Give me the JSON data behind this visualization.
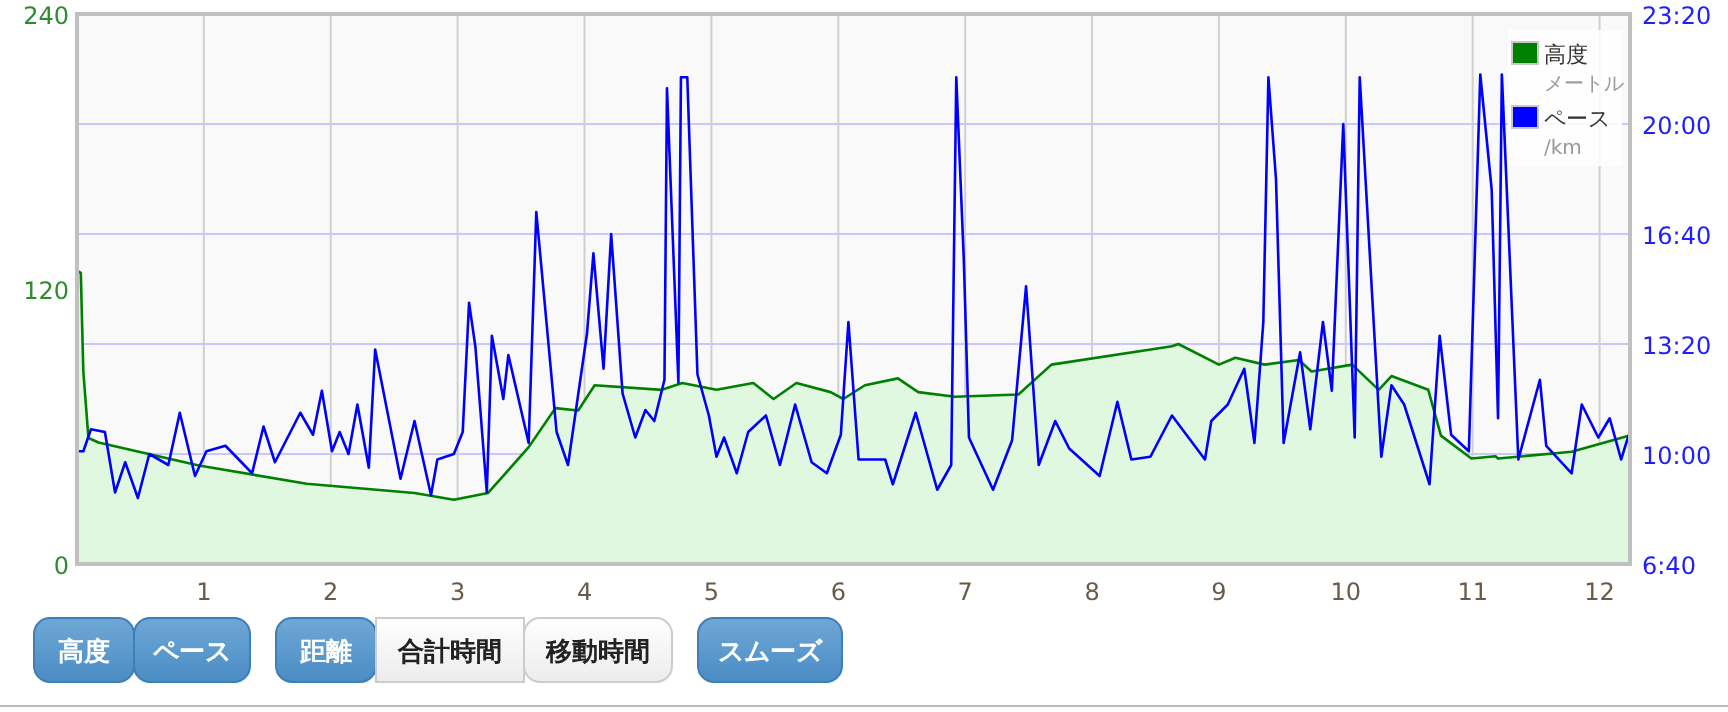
{
  "chart_data": {
    "type": "line",
    "xlim": [
      0,
      12.24
    ],
    "xticks": [
      1,
      2,
      3,
      4,
      5,
      6,
      7,
      8,
      9,
      10,
      11,
      12
    ],
    "ylim": [
      0,
      240
    ],
    "yticks": [
      0,
      120,
      240
    ],
    "y2lim": [
      400,
      1400
    ],
    "y2ticks": [
      {
        "value": 400,
        "label": "6:40"
      },
      {
        "value": 600,
        "label": "10:00"
      },
      {
        "value": 800,
        "label": "13:20"
      },
      {
        "value": 1000,
        "label": "16:40"
      },
      {
        "value": 1200,
        "label": "20:00"
      },
      {
        "value": 1400,
        "label": "23:20"
      }
    ],
    "grid": true,
    "legend": "top right",
    "series": [
      {
        "name": "高度",
        "type": "area",
        "color": "#008000",
        "x": [
          0,
          0.03,
          0.05,
          0.09,
          0.17,
          0.96,
          1.81,
          2.66,
          2.97,
          3.24,
          3.4,
          3.56,
          3.77,
          3.95,
          4.08,
          4.61,
          4.77,
          5.04,
          5.33,
          5.49,
          5.67,
          5.94,
          6.04,
          6.21,
          6.47,
          6.63,
          6.92,
          7.42,
          7.68,
          8.63,
          8.68,
          9.0,
          9.13,
          9.36,
          9.63,
          9.73,
          10.05,
          10.26,
          10.36,
          10.65,
          10.75,
          10.99,
          11.18,
          11.2,
          11.78,
          12.23
        ],
        "values": [
          128,
          127,
          84,
          55,
          53,
          43,
          35,
          31,
          28,
          31,
          41,
          51,
          68,
          67,
          78,
          76,
          79,
          76,
          79,
          72,
          79,
          75,
          72,
          78,
          81,
          75,
          73,
          74,
          87,
          95,
          96,
          87,
          90,
          87,
          89,
          84,
          87,
          76,
          82,
          76,
          56,
          46,
          47,
          46,
          49,
          56
        ]
      },
      {
        "name": "ペース",
        "axis": "y2",
        "color": "#0000ff",
        "x": [
          0,
          0.05,
          0.11,
          0.22,
          0.3,
          0.38,
          0.48,
          0.57,
          0.72,
          0.81,
          0.93,
          1.02,
          1.17,
          1.38,
          1.47,
          1.56,
          1.76,
          1.86,
          1.93,
          2.01,
          2.07,
          2.14,
          2.21,
          2.3,
          2.35,
          2.55,
          2.66,
          2.79,
          2.84,
          2.97,
          3.04,
          3.09,
          3.14,
          3.23,
          3.27,
          3.36,
          3.4,
          3.56,
          3.62,
          3.78,
          3.87,
          4.02,
          4.07,
          4.15,
          4.21,
          4.3,
          4.4,
          4.48,
          4.55,
          4.63,
          4.65,
          4.74,
          4.76,
          4.81,
          4.89,
          4.98,
          5.04,
          5.1,
          5.2,
          5.29,
          5.43,
          5.54,
          5.66,
          5.79,
          5.91,
          6.02,
          6.08,
          6.16,
          6.37,
          6.43,
          6.61,
          6.78,
          6.89,
          6.93,
          6.99,
          7.03,
          7.22,
          7.37,
          7.48,
          7.58,
          7.71,
          7.82,
          8.06,
          8.2,
          8.31,
          8.46,
          8.63,
          8.89,
          8.94,
          9.07,
          9.2,
          9.28,
          9.35,
          9.39,
          9.45,
          9.51,
          9.64,
          9.72,
          9.82,
          9.89,
          9.98,
          10.07,
          10.11,
          10.28,
          10.36,
          10.46,
          10.66,
          10.74,
          10.83,
          10.97,
          11.06,
          11.15,
          11.2,
          11.23,
          11.36,
          11.53,
          11.58,
          11.78,
          11.86,
          11.99,
          12.08,
          12.17,
          12.23
        ],
        "values": [
          605,
          605,
          645,
          640,
          530,
          585,
          520,
          600,
          580,
          675,
          560,
          605,
          615,
          565,
          650,
          585,
          675,
          635,
          715,
          605,
          640,
          600,
          690,
          575,
          790,
          555,
          660,
          525,
          590,
          600,
          640,
          875,
          795,
          530,
          815,
          700,
          780,
          620,
          1040,
          640,
          580,
          820,
          965,
          755,
          1000,
          710,
          630,
          680,
          660,
          735,
          1265,
          730,
          1285,
          1285,
          745,
          670,
          595,
          630,
          565,
          640,
          670,
          580,
          690,
          585,
          565,
          635,
          840,
          590,
          590,
          545,
          675,
          535,
          580,
          1285,
          950,
          630,
          535,
          625,
          905,
          580,
          660,
          610,
          560,
          695,
          590,
          595,
          670,
          590,
          660,
          690,
          755,
          620,
          840,
          1285,
          1100,
          620,
          785,
          645,
          840,
          715,
          1200,
          630,
          1285,
          595,
          725,
          690,
          545,
          815,
          635,
          605,
          1290,
          1080,
          665,
          1290,
          590,
          735,
          615,
          565,
          690,
          630,
          665,
          590,
          635
        ]
      }
    ],
    "annotations": [
      "高度",
      "ペース",
      "距離",
      "合計時間",
      "移動時間",
      "スムーズ",
      "メートル",
      "/km"
    ]
  }
}
